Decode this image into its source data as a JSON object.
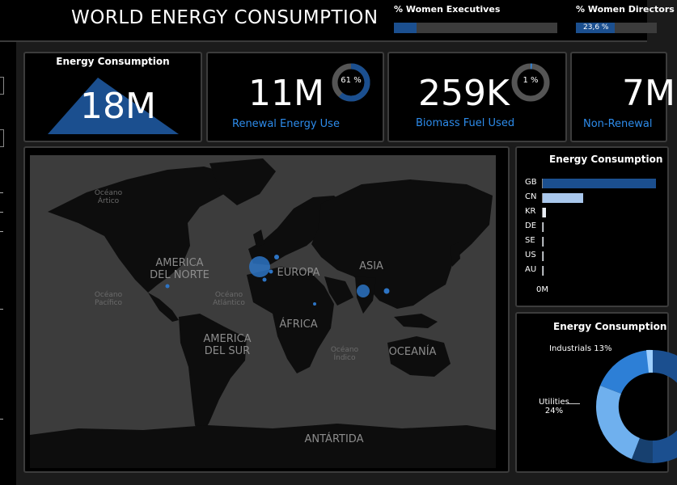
{
  "header": {
    "title": "WORLD ENERGY CONSUMPTION",
    "kpis": [
      {
        "label": "% Women Executives",
        "value_text": "",
        "fraction": 0.14
      },
      {
        "label": "% Women Directors",
        "value_text": "23,6 %",
        "fraction": 0.236
      }
    ]
  },
  "cards": {
    "consumption": {
      "title": "Energy Consumption",
      "value": "18M"
    },
    "renewal": {
      "value": "11M",
      "label": "Renewal Energy Use",
      "donut_text": "61 %",
      "fraction": 0.61
    },
    "biomass": {
      "value": "259K",
      "label": "Biomass Fuel Used",
      "donut_text": "1 %",
      "fraction": 0.01
    },
    "nonrenewal": {
      "value": "7M",
      "label": "Non-Renewal"
    }
  },
  "map": {
    "continents": {
      "north_america": "AMERICA DEL NORTE",
      "south_america": "AMERICA DEL SUR",
      "europe": "EUROPA",
      "asia": "ASIA",
      "africa": "ÁFRICA",
      "oceania": "OCEANÍA",
      "antarctica": "ANTÁRTIDA"
    },
    "oceans": {
      "arctic": "Océano Ártico",
      "pacific": "Océano Pacífico",
      "atlantic": "Océano Atlántico",
      "indian": "Océano Índico"
    },
    "bubble_color": "#2d74c4"
  },
  "bar_chart": {
    "title": "Energy Consumption",
    "categories": [
      "GB",
      "CN",
      "KR",
      "DE",
      "SE",
      "US",
      "AU"
    ],
    "values": [
      100,
      36,
      3,
      0.8,
      0.6,
      0.5,
      0.4
    ],
    "colors": [
      "#1b4f8f",
      "#a9c7ec",
      "#e8eef6",
      "#e8eef6",
      "#e8eef6",
      "#e8eef6",
      "#e8eef6"
    ],
    "axis_label": "0M"
  },
  "donut_chart": {
    "title": "Energy Consumption",
    "labels": [
      {
        "name": "Industrials",
        "pct": "13%"
      },
      {
        "name": "Utilities",
        "pct": "24%"
      }
    ]
  }
}
